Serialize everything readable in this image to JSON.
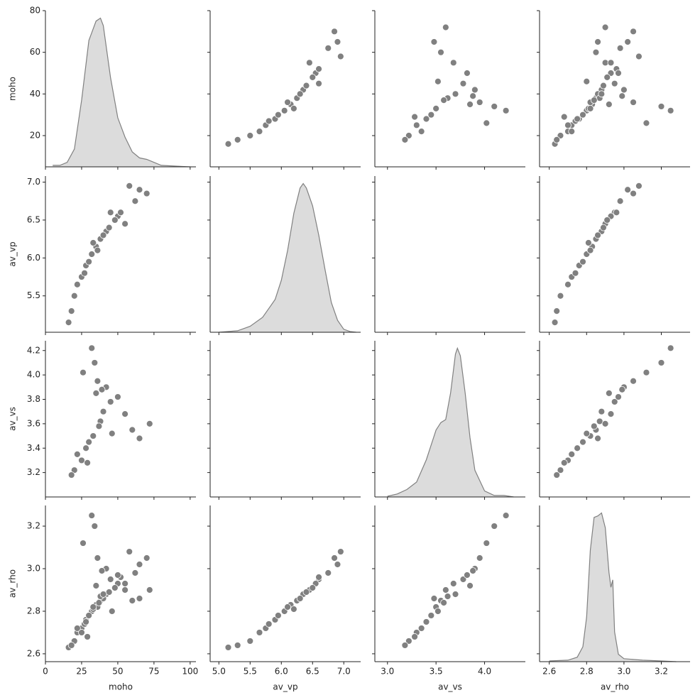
{
  "chart_data": {
    "type": "pairplot",
    "color": "#808080",
    "kde_fill": "#dcdcdc",
    "axes": [
      {
        "label": "moho",
        "xlim": [
          0,
          104
        ],
        "xticks": [
          0,
          25,
          50,
          75,
          100
        ],
        "ylim": [
          5,
          80
        ],
        "yticks": [
          20,
          40,
          60,
          80
        ]
      },
      {
        "label": "av_vp",
        "xlim": [
          4.86,
          7.27
        ],
        "xticks": [
          {
            "value": 5,
            "label": "5.0"
          },
          5.5,
          {
            "value": 6,
            "label": "6.0"
          },
          6.5,
          {
            "value": 7,
            "label": "7.0"
          }
        ],
        "ylim": [
          5.02,
          7.08
        ],
        "yticks": [
          5.5,
          {
            "value": 6,
            "label": "6.0"
          },
          6.5,
          {
            "value": 7,
            "label": "7.0"
          }
        ]
      },
      {
        "label": "av_vs",
        "xlim": [
          2.87,
          4.42
        ],
        "xticks": [
          {
            "value": 3,
            "label": "3.0"
          },
          3.5,
          {
            "value": 4,
            "label": "4.0"
          }
        ],
        "ylim": [
          3.0,
          4.28
        ],
        "yticks": [
          3.2,
          3.4,
          3.6,
          3.8,
          {
            "value": 4,
            "label": "4.0"
          },
          4.2
        ]
      },
      {
        "label": "av_rho",
        "xlim": [
          2.548,
          3.354
        ],
        "xticks": [
          2.6,
          2.8,
          {
            "value": 3,
            "label": "3.0"
          },
          3.2
        ],
        "ylim": [
          2.563,
          3.297
        ],
        "yticks": [
          2.6,
          2.8,
          {
            "value": 3,
            "label": "3.0"
          },
          3.2
        ]
      }
    ],
    "samples": [
      [
        38,
        6.25,
        null,
        2.85
      ],
      [
        25,
        5.75,
        null,
        2.72
      ],
      [
        45,
        6.6,
        null,
        2.95
      ],
      [
        32,
        6.05,
        null,
        2.8
      ],
      [
        55,
        6.45,
        null,
        2.9
      ],
      [
        20,
        5.5,
        null,
        2.66
      ],
      [
        62,
        6.75,
        null,
        2.98
      ],
      [
        28,
        5.9,
        null,
        2.76
      ],
      [
        42,
        6.35,
        null,
        2.88
      ],
      [
        35,
        6.15,
        null,
        2.83
      ],
      [
        70,
        6.85,
        null,
        3.05
      ],
      [
        18,
        5.3,
        null,
        2.64
      ],
      [
        50,
        6.55,
        null,
        2.93
      ],
      [
        30,
        5.95,
        null,
        2.78
      ],
      [
        40,
        6.3,
        null,
        2.86
      ],
      [
        65,
        6.9,
        null,
        3.02
      ],
      [
        22,
        5.65,
        null,
        2.7
      ],
      [
        48,
        6.5,
        null,
        2.91
      ],
      [
        36,
        6.1,
        null,
        2.82
      ],
      [
        58,
        6.95,
        null,
        3.08
      ],
      [
        16,
        5.15,
        null,
        2.63
      ],
      [
        44,
        6.4,
        null,
        2.89
      ],
      [
        27,
        5.8,
        null,
        2.74
      ],
      [
        52,
        6.6,
        null,
        2.96
      ],
      [
        33,
        6.2,
        null,
        2.81
      ],
      [
        38,
        null,
        3.62,
        2.87
      ],
      [
        25,
        null,
        3.3,
        2.7
      ],
      [
        45,
        null,
        3.78,
        2.95
      ],
      [
        30,
        null,
        3.45,
        2.78
      ],
      [
        35,
        null,
        3.85,
        2.92
      ],
      [
        20,
        null,
        3.22,
        2.66
      ],
      [
        60,
        null,
        3.55,
        2.85
      ],
      [
        28,
        null,
        3.4,
        2.75
      ],
      [
        42,
        null,
        3.9,
        3.0
      ],
      [
        33,
        null,
        3.5,
        2.82
      ],
      [
        72,
        null,
        3.6,
        2.9
      ],
      [
        18,
        null,
        3.18,
        2.64
      ],
      [
        50,
        null,
        3.82,
        2.97
      ],
      [
        36,
        null,
        3.95,
        3.05
      ],
      [
        40,
        null,
        3.7,
        2.88
      ],
      [
        32,
        null,
        4.22,
        3.25
      ],
      [
        22,
        null,
        3.35,
        2.72
      ],
      [
        55,
        null,
        3.68,
        2.93
      ],
      [
        37,
        null,
        3.58,
        2.84
      ],
      [
        26,
        null,
        4.02,
        3.12
      ],
      [
        46,
        null,
        3.52,
        2.8
      ],
      [
        34,
        null,
        4.1,
        3.2
      ],
      [
        65,
        null,
        3.48,
        2.86
      ],
      [
        29,
        null,
        3.28,
        2.68
      ],
      [
        39,
        null,
        3.88,
        2.99
      ]
    ],
    "kde": [
      {
        "x": [
          5,
          10,
          15,
          20,
          25,
          30,
          35,
          38,
          40,
          45,
          50,
          55,
          60,
          65,
          70,
          75,
          80,
          90,
          100
        ],
        "density": [
          0.01,
          0.01,
          0.03,
          0.12,
          0.45,
          0.85,
          0.98,
          1.0,
          0.95,
          0.6,
          0.33,
          0.2,
          0.1,
          0.06,
          0.05,
          0.03,
          0.01,
          0.005,
          0
        ],
        "ylim": [
          0,
          1.05
        ]
      },
      {
        "x": [
          5.0,
          5.3,
          5.5,
          5.7,
          5.9,
          6.0,
          6.1,
          6.2,
          6.3,
          6.35,
          6.4,
          6.5,
          6.6,
          6.7,
          6.8,
          6.9,
          7.0,
          7.1,
          7.2
        ],
        "density": [
          0,
          0.01,
          0.04,
          0.1,
          0.22,
          0.35,
          0.55,
          0.8,
          0.97,
          1.0,
          0.97,
          0.85,
          0.65,
          0.42,
          0.2,
          0.08,
          0.02,
          0.005,
          0
        ],
        "ylim": [
          0,
          1.05
        ]
      },
      {
        "x": [
          3.0,
          3.1,
          3.2,
          3.3,
          3.4,
          3.5,
          3.55,
          3.6,
          3.65,
          3.7,
          3.72,
          3.75,
          3.8,
          3.85,
          3.9,
          4.0,
          4.1,
          4.2,
          4.3
        ],
        "density": [
          0.005,
          0.02,
          0.05,
          0.1,
          0.25,
          0.45,
          0.5,
          0.52,
          0.7,
          0.96,
          1.0,
          0.95,
          0.7,
          0.4,
          0.18,
          0.04,
          0.01,
          0.01,
          0
        ],
        "ylim": [
          0,
          1.05
        ]
      },
      {
        "x": [
          2.6,
          2.7,
          2.75,
          2.78,
          2.8,
          2.82,
          2.84,
          2.86,
          2.88,
          2.9,
          2.92,
          2.93,
          2.94,
          2.95,
          2.97,
          3.0,
          3.1,
          3.2,
          3.28
        ],
        "density": [
          0.005,
          0.01,
          0.03,
          0.1,
          0.3,
          0.75,
          0.97,
          0.98,
          1.0,
          0.9,
          0.6,
          0.5,
          0.55,
          0.2,
          0.05,
          0.02,
          0.01,
          0.005,
          0
        ],
        "ylim": [
          0,
          1.05
        ]
      }
    ]
  }
}
